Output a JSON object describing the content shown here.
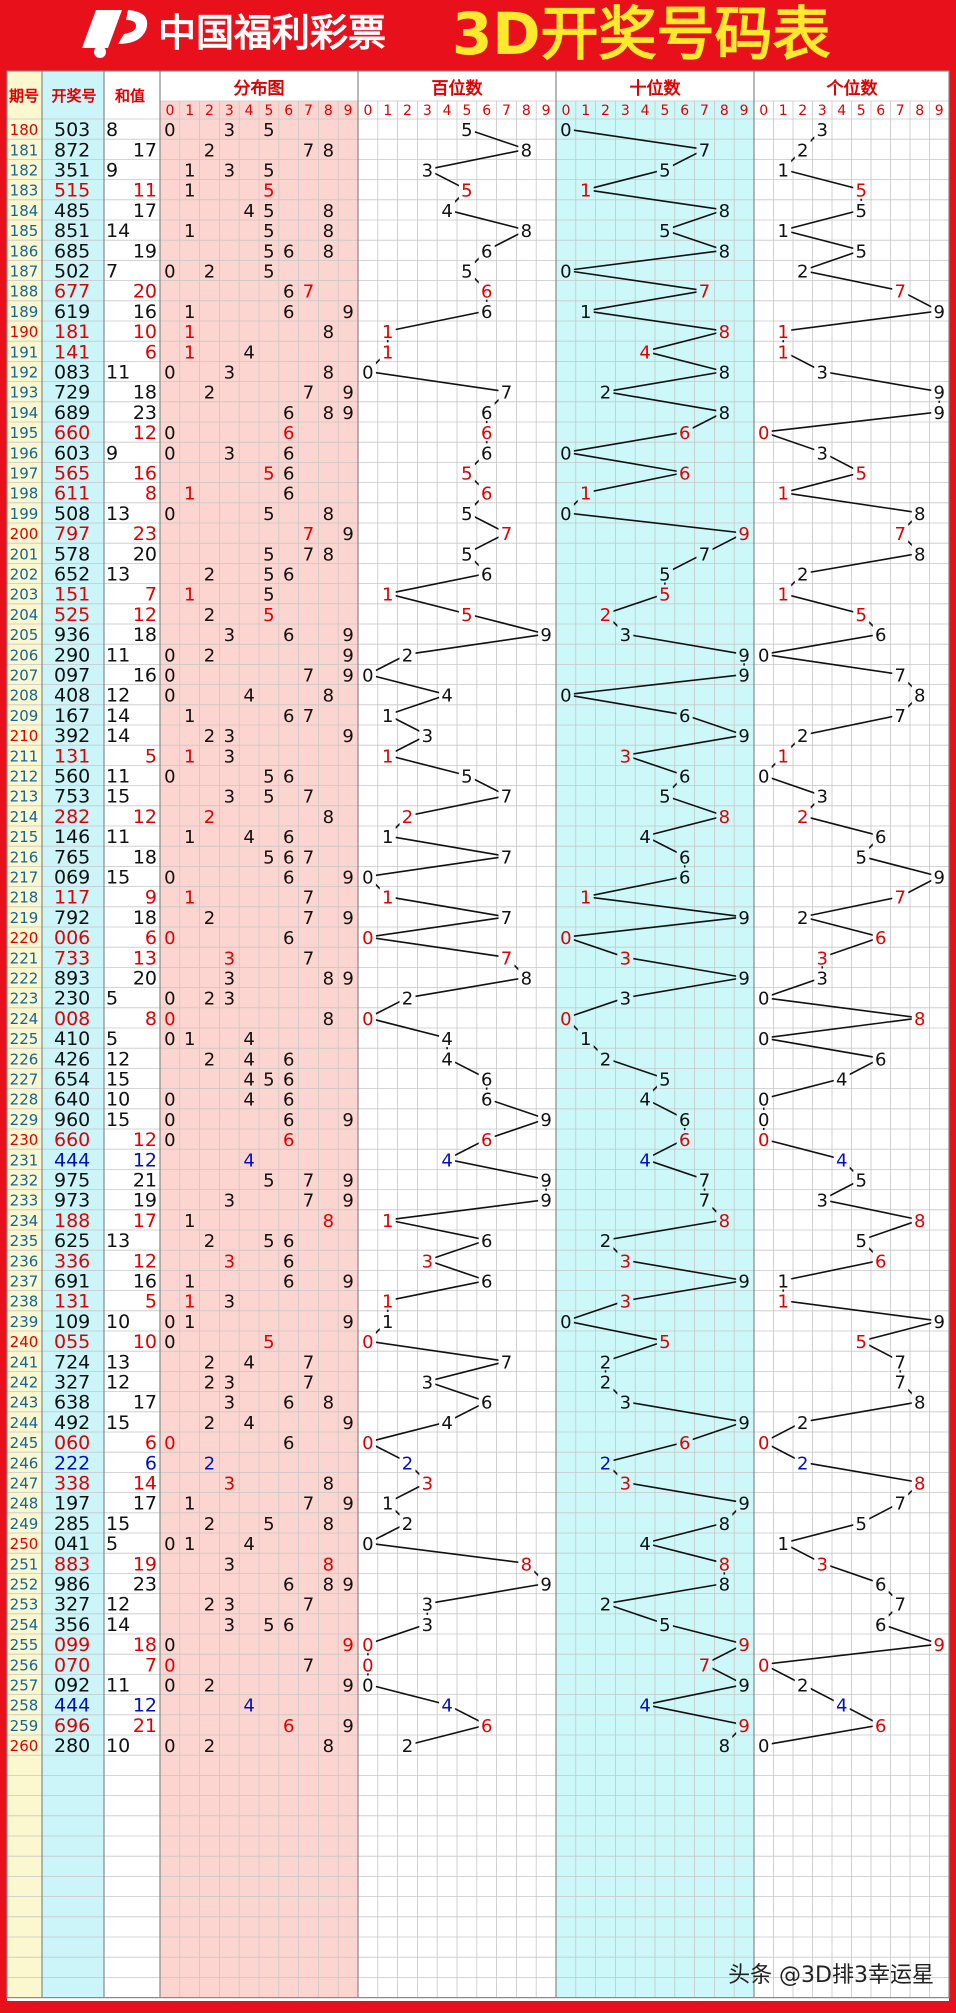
{
  "header": {
    "logo_text": "中国福利彩票",
    "title": "3D开奖号码表"
  },
  "columns": {
    "period": "期号",
    "number": "开奖号",
    "sum": "和值",
    "distribution": "分布图",
    "hundreds": "百位数",
    "tens": "十位数",
    "units": "个位数"
  },
  "digit_labels": [
    "0",
    "1",
    "2",
    "3",
    "4",
    "5",
    "6",
    "7",
    "8",
    "9"
  ],
  "colors": {
    "background": "#e8101a",
    "header_title": "#ffe92e",
    "grid": "#c7c7c7",
    "period_column": "#fbf7cf",
    "number_column": "#ccf5f9",
    "distribution_column": "#fdd5d0",
    "tens_column": "#ccf8f9",
    "normal_text": "#111111",
    "red_text": "#e00000",
    "blue_text": "#0011bb"
  },
  "chart_data": {
    "type": "table",
    "title": "3D开奖号码表",
    "periods": [
      180,
      181,
      182,
      183,
      184,
      185,
      186,
      187,
      188,
      189,
      190,
      191,
      192,
      193,
      194,
      195,
      196,
      197,
      198,
      199,
      200,
      201,
      202,
      203,
      204,
      205,
      206,
      207,
      208,
      209,
      210,
      211,
      212,
      213,
      214,
      215,
      216,
      217,
      218,
      219,
      220,
      221,
      222,
      223,
      224,
      225,
      226,
      227,
      228,
      229,
      230,
      231,
      232,
      233,
      234,
      235,
      236,
      237,
      238,
      239,
      240,
      241,
      242,
      243,
      244,
      245,
      246,
      247,
      248,
      249,
      250,
      251,
      252,
      253,
      254,
      255,
      256,
      257,
      258,
      259,
      260
    ],
    "numbers": [
      "503",
      "872",
      "351",
      "515",
      "485",
      "851",
      "685",
      "502",
      "677",
      "619",
      "181",
      "141",
      "083",
      "729",
      "689",
      "660",
      "603",
      "565",
      "611",
      "508",
      "797",
      "578",
      "652",
      "151",
      "525",
      "936",
      "290",
      "097",
      "408",
      "167",
      "392",
      "131",
      "560",
      "753",
      "282",
      "146",
      "765",
      "069",
      "117",
      "792",
      "006",
      "733",
      "893",
      "230",
      "008",
      "410",
      "426",
      "654",
      "640",
      "960",
      "660",
      "444",
      "975",
      "973",
      "188",
      "625",
      "336",
      "691",
      "131",
      "109",
      "055",
      "724",
      "327",
      "638",
      "492",
      "060",
      "222",
      "338",
      "197",
      "285",
      "041",
      "883",
      "986",
      "327",
      "356",
      "099",
      "070",
      "092",
      "444",
      "696",
      "280"
    ],
    "sums": [
      8,
      17,
      9,
      11,
      17,
      14,
      19,
      7,
      20,
      16,
      10,
      6,
      11,
      18,
      23,
      12,
      9,
      16,
      8,
      13,
      23,
      20,
      13,
      7,
      12,
      18,
      11,
      16,
      12,
      14,
      14,
      5,
      11,
      15,
      12,
      11,
      18,
      15,
      9,
      18,
      6,
      13,
      20,
      5,
      8,
      5,
      12,
      15,
      10,
      15,
      12,
      12,
      21,
      19,
      17,
      13,
      12,
      16,
      5,
      10,
      10,
      13,
      12,
      17,
      15,
      6,
      6,
      14,
      17,
      15,
      5,
      19,
      23,
      12,
      14,
      18,
      7,
      11,
      12,
      21,
      10
    ],
    "hundreds": [
      5,
      8,
      3,
      5,
      4,
      8,
      6,
      5,
      6,
      6,
      1,
      1,
      0,
      7,
      6,
      6,
      6,
      5,
      6,
      5,
      7,
      5,
      6,
      1,
      5,
      9,
      2,
      0,
      4,
      1,
      3,
      1,
      5,
      7,
      2,
      1,
      7,
      0,
      1,
      7,
      0,
      7,
      8,
      2,
      0,
      4,
      4,
      6,
      6,
      9,
      6,
      4,
      9,
      9,
      1,
      6,
      3,
      6,
      1,
      1,
      0,
      7,
      3,
      6,
      4,
      0,
      2,
      3,
      1,
      2,
      0,
      8,
      9,
      3,
      3,
      0,
      0,
      0,
      4,
      6,
      2
    ],
    "tens": [
      0,
      7,
      5,
      1,
      8,
      5,
      8,
      0,
      7,
      1,
      8,
      4,
      8,
      2,
      8,
      6,
      0,
      6,
      1,
      0,
      9,
      7,
      5,
      5,
      2,
      3,
      9,
      9,
      0,
      6,
      9,
      3,
      6,
      5,
      8,
      4,
      6,
      6,
      1,
      9,
      0,
      3,
      9,
      3,
      0,
      1,
      2,
      5,
      4,
      6,
      6,
      4,
      7,
      7,
      8,
      2,
      3,
      9,
      3,
      0,
      5,
      2,
      2,
      3,
      9,
      6,
      2,
      3,
      9,
      8,
      4,
      8,
      8,
      2,
      5,
      9,
      7,
      9,
      4,
      9,
      8
    ],
    "units": [
      3,
      2,
      1,
      5,
      5,
      1,
      5,
      2,
      7,
      9,
      1,
      1,
      3,
      9,
      9,
      0,
      3,
      5,
      1,
      8,
      7,
      8,
      2,
      1,
      5,
      6,
      0,
      7,
      8,
      7,
      2,
      1,
      0,
      3,
      2,
      6,
      5,
      9,
      7,
      2,
      6,
      3,
      3,
      0,
      8,
      0,
      6,
      4,
      0,
      0,
      0,
      4,
      5,
      3,
      8,
      5,
      6,
      1,
      1,
      9,
      5,
      7,
      7,
      8,
      2,
      0,
      2,
      8,
      7,
      5,
      1,
      3,
      6,
      7,
      6,
      9,
      0,
      2,
      4,
      6,
      0
    ]
  },
  "watermark": "头条 @3D排3幸运星"
}
